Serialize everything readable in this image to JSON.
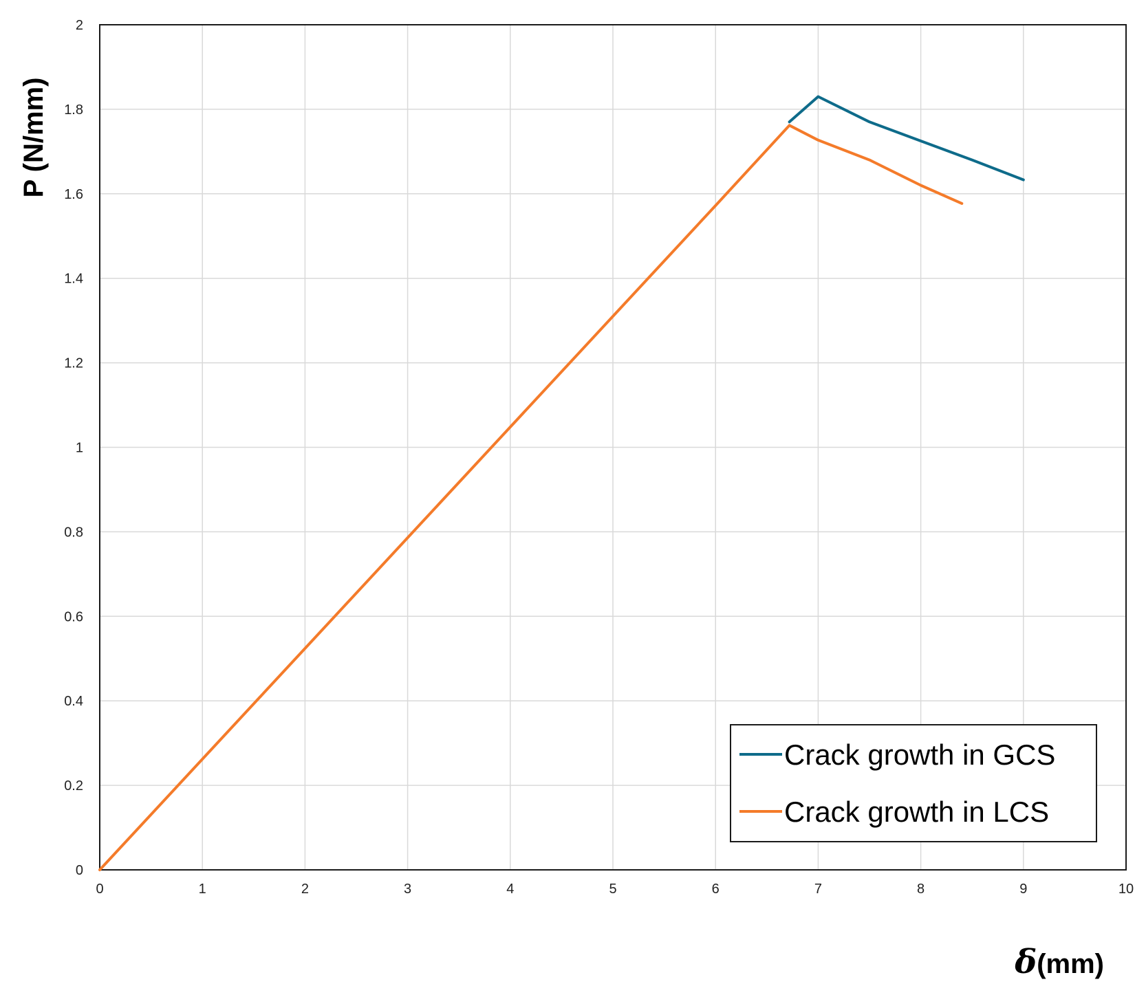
{
  "chart_data": {
    "type": "line",
    "title": "",
    "xlabel_symbol": "δ",
    "xlabel_unit": "(mm)",
    "ylabel": "P (N/mm)",
    "xlim": [
      0,
      10
    ],
    "ylim": [
      0,
      2
    ],
    "xticks": [
      "0",
      "1",
      "2",
      "3",
      "4",
      "5",
      "6",
      "7",
      "8",
      "9",
      "10"
    ],
    "yticks": [
      "0",
      "0.2",
      "0.4",
      "0.6",
      "0.8",
      "1",
      "1.2",
      "1.4",
      "1.6",
      "1.8",
      "2"
    ],
    "grid": true,
    "legend_position": "bottom-right",
    "series": [
      {
        "name": "Crack growth in GCS",
        "color": "#0e6b8a",
        "x": [
          6.72,
          7.0,
          7.5,
          8.0,
          8.5,
          9.0
        ],
        "y": [
          1.77,
          1.83,
          1.77,
          1.725,
          1.68,
          1.633
        ]
      },
      {
        "name": "Crack growth in LCS",
        "color": "#f47b2a",
        "x": [
          0,
          1,
          2,
          3,
          4,
          5,
          6,
          6.72,
          7.0,
          7.5,
          8.0,
          8.4
        ],
        "y": [
          0,
          0.262,
          0.524,
          0.786,
          1.048,
          1.31,
          1.572,
          1.762,
          1.727,
          1.68,
          1.62,
          1.577
        ]
      }
    ]
  }
}
